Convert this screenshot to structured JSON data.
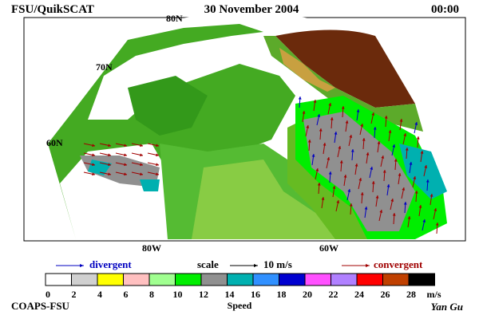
{
  "header": {
    "left": "FSU/QuikSCAT",
    "center": "30 November 2004",
    "right": "00:00"
  },
  "map": {
    "lat_labels": [
      "80N",
      "70N",
      "60N"
    ],
    "lon_labels": [
      "80W",
      "60W"
    ]
  },
  "legend": {
    "divergent": "divergent",
    "scale": "scale",
    "scale_value": "10 m/s",
    "convergent": "convergent"
  },
  "colorbar": {
    "ticks": [
      "0",
      "2",
      "4",
      "6",
      "8",
      "10",
      "12",
      "14",
      "16",
      "18",
      "20",
      "22",
      "24",
      "26",
      "28"
    ],
    "unit": "m/s",
    "label": "Speed",
    "colors": [
      "#ffffff",
      "#d0d0d0",
      "#ffff00",
      "#ffc0c0",
      "#a0ff90",
      "#00ee00",
      "#909090",
      "#00b0b0",
      "#3090ff",
      "#0000d0",
      "#ff50ff",
      "#b080ff",
      "#ff0000",
      "#c04000",
      "#000000"
    ]
  },
  "footer": {
    "left": "COAPS-FSU",
    "right": "Yan Gu"
  }
}
